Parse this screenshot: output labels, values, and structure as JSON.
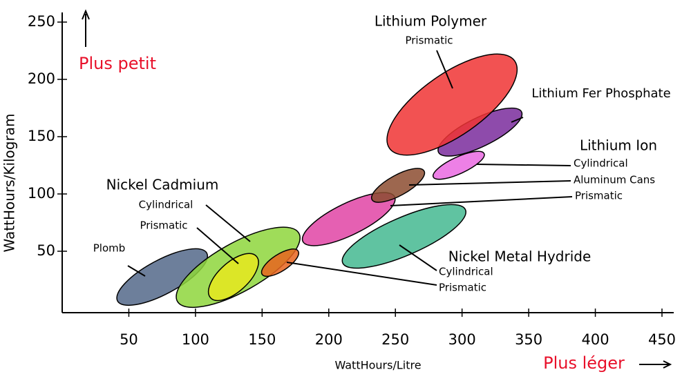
{
  "chart_data": {
    "type": "region",
    "x_label": "WattHours/Litre",
    "y_label": "WattHours/Kilogram",
    "xlim": [
      0,
      450
    ],
    "ylim": [
      0,
      250
    ],
    "xticks": [
      50,
      100,
      150,
      200,
      250,
      300,
      350,
      400,
      450
    ],
    "yticks": [
      50,
      100,
      150,
      200,
      250
    ],
    "annotations": [
      "Plus petit",
      "Plus léger",
      "Lithium Polymer",
      "Lithium Ion",
      "Nickel Cadmium",
      "Nickel Metal Hydride"
    ],
    "series": [
      {
        "name": "Plomb",
        "color": "#53698a",
        "x": [
          39,
          111
        ],
        "y": [
          5,
          50
        ]
      },
      {
        "name": "Cylindrical",
        "color": "#8ed63c",
        "x": [
          83,
          181
        ],
        "y": [
          4,
          68
        ]
      },
      {
        "name": "Prismatic",
        "color": "#e6e81e",
        "x": [
          110,
          147
        ],
        "y": [
          8,
          47
        ]
      },
      {
        "name": "Prismatic",
        "color": "#e8641e",
        "x": [
          149,
          178
        ],
        "y": [
          29,
          51
        ]
      },
      {
        "name": "Cylindrical",
        "color": "#44b890",
        "x": [
          207,
          306
        ],
        "y": [
          38,
          88
        ]
      },
      {
        "name": "Prismatic",
        "color": "#e044a4",
        "x": [
          178,
          252
        ],
        "y": [
          57,
          99
        ]
      },
      {
        "name": "Aluminum Cans",
        "color": "#8c4c30",
        "x": [
          231,
          273
        ],
        "y": [
          94,
          121
        ]
      },
      {
        "name": "Cylindrical",
        "color": "#ea6ae2",
        "x": [
          277,
          318
        ],
        "y": [
          114,
          136
        ]
      },
      {
        "name": "Lithium Fer Phosphate",
        "color": "#7a2c9c",
        "x": [
          280,
          347
        ],
        "y": [
          135,
          173
        ]
      },
      {
        "name": "Prismatic",
        "color": "#f03434",
        "x": [
          242,
          343
        ],
        "y": [
          137,
          219
        ]
      }
    ]
  }
}
